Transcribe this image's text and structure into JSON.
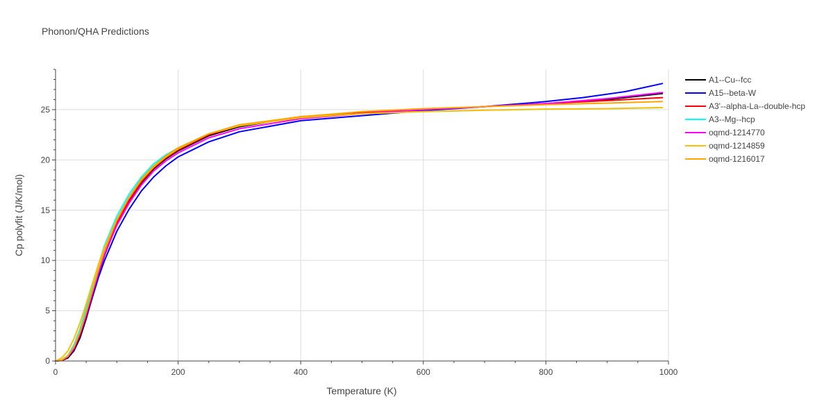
{
  "chart_data": {
    "type": "line",
    "title": "Phonon/QHA Predictions",
    "xlabel": "Temperature (K)",
    "ylabel": "Cp polyfit (J/K/mol)",
    "xlim": [
      0,
      1000
    ],
    "ylim": [
      0,
      29
    ],
    "xticks": [
      0,
      200,
      400,
      600,
      800,
      1000
    ],
    "yticks": [
      0,
      5,
      10,
      15,
      20,
      25
    ],
    "grid": true,
    "legend_position": "right",
    "series": [
      {
        "name": "A1--Cu--fcc",
        "color": "#000000",
        "x": [
          0,
          10,
          20,
          30,
          40,
          50,
          60,
          70,
          80,
          100,
          120,
          140,
          160,
          180,
          200,
          250,
          300,
          400,
          500,
          600,
          700,
          800,
          900,
          990
        ],
        "y": [
          0,
          0.05,
          0.3,
          1.0,
          2.3,
          4.2,
          6.4,
          8.6,
          10.5,
          13.6,
          15.9,
          17.7,
          19.1,
          20.1,
          20.9,
          22.4,
          23.3,
          24.3,
          24.7,
          25.0,
          25.3,
          25.6,
          26.0,
          26.6
        ]
      },
      {
        "name": "A15--beta-W",
        "color": "#0000ff",
        "x": [
          0,
          10,
          20,
          30,
          40,
          50,
          60,
          70,
          80,
          100,
          120,
          140,
          160,
          180,
          200,
          250,
          300,
          400,
          500,
          600,
          700,
          800,
          860,
          930,
          990
        ],
        "y": [
          0,
          0.05,
          0.35,
          1.1,
          2.5,
          4.3,
          6.3,
          8.3,
          10.0,
          12.9,
          15.1,
          16.9,
          18.3,
          19.4,
          20.3,
          21.8,
          22.8,
          23.9,
          24.4,
          24.9,
          25.3,
          25.8,
          26.2,
          26.8,
          27.6
        ]
      },
      {
        "name": "A3'--alpha-La--double-hcp",
        "color": "#ff0000",
        "x": [
          0,
          10,
          20,
          30,
          40,
          50,
          60,
          70,
          80,
          100,
          120,
          140,
          160,
          180,
          200,
          250,
          300,
          400,
          500,
          600,
          700,
          800,
          900,
          990
        ],
        "y": [
          0,
          0.06,
          0.4,
          1.2,
          2.6,
          4.5,
          6.6,
          8.7,
          10.6,
          13.7,
          16.0,
          17.8,
          19.2,
          20.2,
          21.0,
          22.5,
          23.4,
          24.3,
          24.7,
          25.0,
          25.3,
          25.6,
          25.9,
          26.2
        ]
      },
      {
        "name": "A3--Mg--hcp",
        "color": "#00ffff",
        "x": [
          0,
          10,
          20,
          30,
          40,
          50,
          60,
          70,
          80,
          100,
          120,
          140,
          160,
          180,
          200,
          250,
          300,
          400,
          500,
          600,
          700,
          800,
          900,
          990
        ],
        "y": [
          0,
          0.1,
          0.55,
          1.6,
          3.2,
          5.3,
          7.5,
          9.6,
          11.5,
          14.4,
          16.6,
          18.3,
          19.6,
          20.5,
          21.2,
          22.6,
          23.4,
          24.2,
          24.6,
          24.8,
          24.95,
          25.05,
          25.1,
          25.2
        ]
      },
      {
        "name": "oqmd-1214770",
        "color": "#ff00ff",
        "x": [
          0,
          10,
          20,
          30,
          40,
          50,
          60,
          70,
          80,
          100,
          120,
          140,
          160,
          180,
          200,
          250,
          300,
          400,
          500,
          600,
          700,
          800,
          900,
          990
        ],
        "y": [
          0,
          0.08,
          0.45,
          1.3,
          2.8,
          4.7,
          6.8,
          8.8,
          10.6,
          13.5,
          15.7,
          17.5,
          18.9,
          19.9,
          20.7,
          22.2,
          23.1,
          24.1,
          24.6,
          25.0,
          25.3,
          25.6,
          26.1,
          26.7
        ]
      },
      {
        "name": "oqmd-1214859",
        "color": "#ffbf00",
        "x": [
          0,
          10,
          20,
          30,
          40,
          50,
          60,
          70,
          80,
          100,
          120,
          140,
          160,
          180,
          200,
          250,
          300,
          400,
          500,
          600,
          700,
          800,
          900,
          990
        ],
        "y": [
          0,
          0.3,
          1.0,
          2.2,
          3.8,
          5.7,
          7.7,
          9.6,
          11.3,
          14.1,
          16.3,
          18.0,
          19.3,
          20.3,
          21.1,
          22.6,
          23.4,
          24.2,
          24.6,
          24.8,
          24.95,
          25.05,
          25.1,
          25.2
        ]
      },
      {
        "name": "oqmd-1216017",
        "color": "#ffa500",
        "x": [
          0,
          10,
          20,
          30,
          40,
          50,
          60,
          70,
          80,
          100,
          120,
          140,
          160,
          180,
          200,
          250,
          300,
          400,
          500,
          600,
          700,
          800,
          900,
          990
        ],
        "y": [
          0,
          0.08,
          0.5,
          1.4,
          2.9,
          4.9,
          7.0,
          9.1,
          11.0,
          14.0,
          16.3,
          18.1,
          19.4,
          20.4,
          21.2,
          22.6,
          23.5,
          24.3,
          24.8,
          25.1,
          25.3,
          25.5,
          25.65,
          25.8
        ]
      }
    ]
  }
}
